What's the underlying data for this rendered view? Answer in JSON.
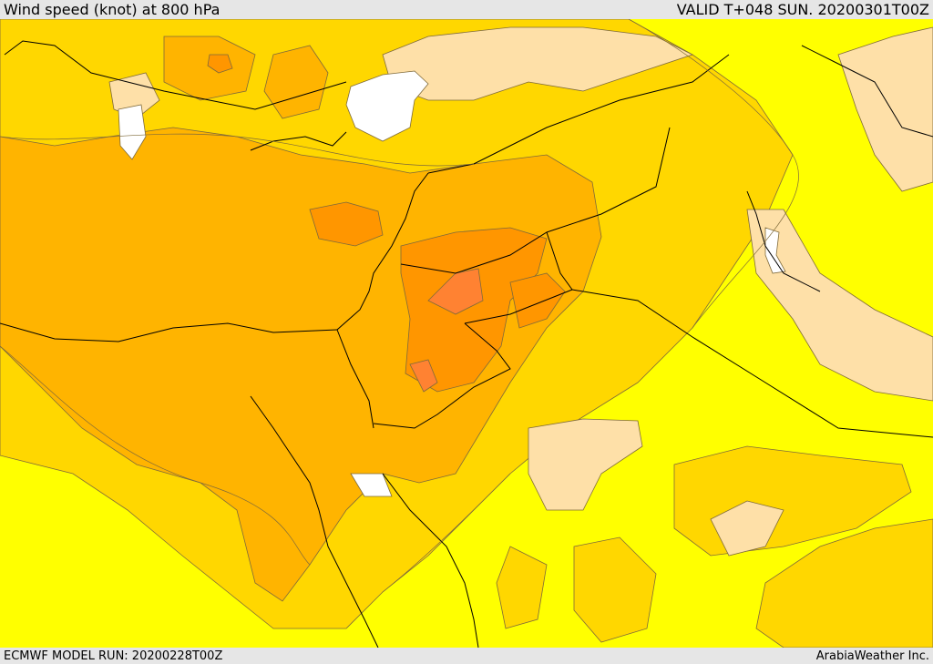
{
  "header": {
    "title": "Wind speed (knot) at 800 hPa",
    "valid_time": "VALID T+048 SUN. 20200301T00Z"
  },
  "footer": {
    "model_run": "ECMWF MODEL RUN: 20200228T00Z",
    "credit": "ArabiaWeather Inc."
  },
  "map": {
    "field": "wind speed",
    "level": "800 hPa",
    "palette": {
      "lowest": "#ffff00",
      "low": "#ffd700",
      "moderate": "#ffb400",
      "high": "#ff9600",
      "highest": "#ff8232",
      "calm": "#fee0a8",
      "masked": "#ffffff",
      "contour": "#7f6a3a",
      "border": "#000000"
    }
  }
}
